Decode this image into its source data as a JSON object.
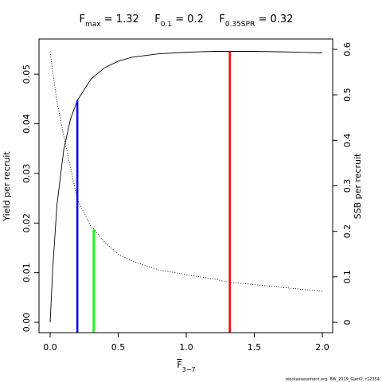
{
  "chart_data": {
    "type": "line",
    "title": {
      "fmax": {
        "base": "F",
        "sub": "max",
        "value": "1.32"
      },
      "f01": {
        "base": "F",
        "sub": "0.1",
        "value": "0.2"
      },
      "f35": {
        "base": "F",
        "sub": "0.35SPR",
        "value": "0.32"
      }
    },
    "xlabel": {
      "base": "F",
      "sub": "3−7"
    },
    "ylabel_left": "Yield per recruit",
    "ylabel_right": "SSB per recruit",
    "xlim": [
      0,
      2.0
    ],
    "ylim_left": [
      0,
      0.055
    ],
    "ylim_right": [
      0,
      0.6
    ],
    "x_ticks": [
      {
        "value": 0.0,
        "label": "0.0"
      },
      {
        "value": 0.5,
        "label": "0.5"
      },
      {
        "value": 1.0,
        "label": "1.0"
      },
      {
        "value": 1.5,
        "label": "1.5"
      },
      {
        "value": 2.0,
        "label": "2.0"
      }
    ],
    "y_left_ticks": [
      {
        "value": 0.0,
        "label": "0.00"
      },
      {
        "value": 0.01,
        "label": "0.01"
      },
      {
        "value": 0.02,
        "label": "0.02"
      },
      {
        "value": 0.03,
        "label": "0.03"
      },
      {
        "value": 0.04,
        "label": "0.04"
      },
      {
        "value": 0.05,
        "label": "0.05"
      }
    ],
    "y_right_ticks": [
      {
        "value": 0.0,
        "label": "0"
      },
      {
        "value": 0.1,
        "label": "0.1"
      },
      {
        "value": 0.2,
        "label": "0.2"
      },
      {
        "value": 0.3,
        "label": "0.3"
      },
      {
        "value": 0.4,
        "label": "0.4"
      },
      {
        "value": 0.5,
        "label": "0.5"
      },
      {
        "value": 0.6,
        "label": "0.6"
      }
    ],
    "series": [
      {
        "axis": "left",
        "style": "solid",
        "color": "#000000",
        "x": [
          0,
          0.02,
          0.05,
          0.1,
          0.15,
          0.2,
          0.3,
          0.4,
          0.5,
          0.6,
          0.8,
          1.0,
          1.2,
          1.32,
          1.5,
          1.7,
          2.0
        ],
        "y": [
          0,
          0.0112,
          0.0236,
          0.0348,
          0.041,
          0.0447,
          0.049,
          0.0513,
          0.0526,
          0.0534,
          0.0541,
          0.0544,
          0.0546,
          0.0546,
          0.0546,
          0.0545,
          0.0543
        ]
      },
      {
        "axis": "right",
        "style": "dotted",
        "color": "#000000",
        "x": [
          0,
          0.02,
          0.05,
          0.1,
          0.15,
          0.2,
          0.3,
          0.32,
          0.4,
          0.5,
          0.6,
          0.8,
          1.0,
          1.2,
          1.32,
          1.5,
          1.7,
          2.0
        ],
        "y": [
          0.595,
          0.55,
          0.485,
          0.41,
          0.34,
          0.27,
          0.21,
          0.205,
          0.176,
          0.15,
          0.135,
          0.115,
          0.105,
          0.095,
          0.088,
          0.083,
          0.077,
          0.068
        ]
      }
    ],
    "reference_lines": [
      {
        "x": 0.2,
        "y_left": 0.0447,
        "color": "#0000ff"
      },
      {
        "x": 0.32,
        "y_left": 0.0187,
        "color": "#00ff00"
      },
      {
        "x": 1.32,
        "y_left": 0.0546,
        "color": "#ff0000"
      }
    ],
    "footer": "stockassessment.org, BW_2019_Gjert2, r12354"
  }
}
